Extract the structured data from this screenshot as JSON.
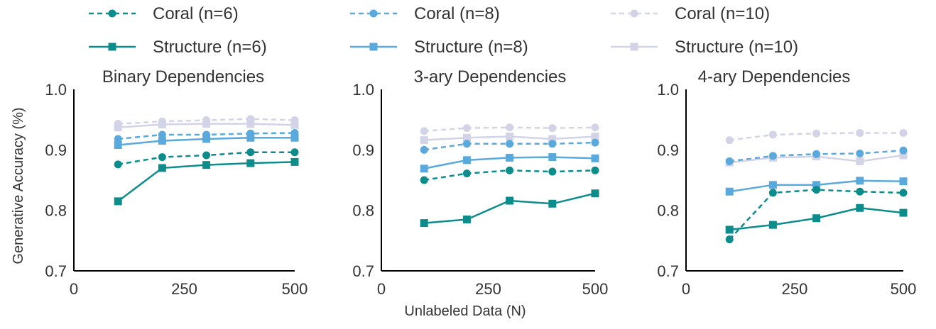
{
  "legend": {
    "items": [
      {
        "label": "Coral (n=6)",
        "color": "#0d8c8c",
        "style": "dashed",
        "marker": "circle"
      },
      {
        "label": "Coral (n=8)",
        "color": "#5aa9dc",
        "style": "dashed",
        "marker": "circle"
      },
      {
        "label": "Coral (n=10)",
        "color": "#d3d3e8",
        "style": "dashed",
        "marker": "circle"
      },
      {
        "label": "Structure (n=6)",
        "color": "#0d8c8c",
        "style": "solid",
        "marker": "square"
      },
      {
        "label": "Structure (n=8)",
        "color": "#5aa9dc",
        "style": "solid",
        "marker": "square"
      },
      {
        "label": "Structure (n=10)",
        "color": "#d3d3e8",
        "style": "solid",
        "marker": "square"
      }
    ]
  },
  "shared": {
    "ylabel": "Generative Accuracy (%)",
    "xlabel": "Unlabeled Data (N)"
  },
  "chart_data": [
    {
      "type": "line",
      "title": "Binary Dependencies",
      "xlim": [
        0,
        500
      ],
      "ylim": [
        0.7,
        1.0
      ],
      "xticks": [
        0,
        250,
        500
      ],
      "yticks": [
        0.7,
        0.8,
        0.9,
        1.0
      ],
      "x": [
        100,
        200,
        300,
        400,
        500
      ],
      "series": [
        {
          "name": "Coral (n=6)",
          "values": [
            0.876,
            0.888,
            0.891,
            0.896,
            0.896
          ]
        },
        {
          "name": "Structure (n=6)",
          "values": [
            0.815,
            0.87,
            0.875,
            0.878,
            0.88
          ]
        },
        {
          "name": "Coral (n=8)",
          "values": [
            0.918,
            0.925,
            0.925,
            0.927,
            0.928
          ]
        },
        {
          "name": "Structure (n=8)",
          "values": [
            0.908,
            0.915,
            0.918,
            0.92,
            0.92
          ]
        },
        {
          "name": "Coral (n=10)",
          "values": [
            0.943,
            0.947,
            0.949,
            0.951,
            0.949
          ]
        },
        {
          "name": "Structure (n=10)",
          "values": [
            0.937,
            0.942,
            0.943,
            0.943,
            0.941
          ]
        }
      ]
    },
    {
      "type": "line",
      "title": "3-ary Dependencies",
      "xlim": [
        0,
        500
      ],
      "ylim": [
        0.7,
        1.0
      ],
      "xticks": [
        0,
        250,
        500
      ],
      "yticks": [
        0.7,
        0.8,
        0.9,
        1.0
      ],
      "x": [
        100,
        200,
        300,
        400,
        500
      ],
      "series": [
        {
          "name": "Coral (n=6)",
          "values": [
            0.85,
            0.861,
            0.866,
            0.864,
            0.866
          ]
        },
        {
          "name": "Structure (n=6)",
          "values": [
            0.779,
            0.785,
            0.816,
            0.811,
            0.828
          ]
        },
        {
          "name": "Coral (n=8)",
          "values": [
            0.9,
            0.91,
            0.91,
            0.91,
            0.912
          ]
        },
        {
          "name": "Structure (n=8)",
          "values": [
            0.869,
            0.883,
            0.887,
            0.888,
            0.886
          ]
        },
        {
          "name": "Coral (n=10)",
          "values": [
            0.931,
            0.936,
            0.937,
            0.936,
            0.937
          ]
        },
        {
          "name": "Structure (n=10)",
          "values": [
            0.916,
            0.92,
            0.922,
            0.918,
            0.922
          ]
        }
      ]
    },
    {
      "type": "line",
      "title": "4-ary Dependencies",
      "xlim": [
        0,
        500
      ],
      "ylim": [
        0.7,
        1.0
      ],
      "xticks": [
        0,
        250,
        500
      ],
      "yticks": [
        0.7,
        0.8,
        0.9,
        1.0
      ],
      "x": [
        100,
        200,
        300,
        400,
        500
      ],
      "series": [
        {
          "name": "Coral (n=6)",
          "values": [
            0.752,
            0.829,
            0.834,
            0.831,
            0.829
          ]
        },
        {
          "name": "Structure (n=6)",
          "values": [
            0.768,
            0.776,
            0.787,
            0.804,
            0.796
          ]
        },
        {
          "name": "Coral (n=8)",
          "values": [
            0.881,
            0.89,
            0.893,
            0.894,
            0.899
          ]
        },
        {
          "name": "Structure (n=8)",
          "values": [
            0.831,
            0.842,
            0.842,
            0.849,
            0.848
          ]
        },
        {
          "name": "Coral (n=10)",
          "values": [
            0.916,
            0.925,
            0.927,
            0.928,
            0.928
          ]
        },
        {
          "name": "Structure (n=10)",
          "values": [
            0.879,
            0.887,
            0.889,
            0.881,
            0.891
          ]
        }
      ]
    }
  ]
}
